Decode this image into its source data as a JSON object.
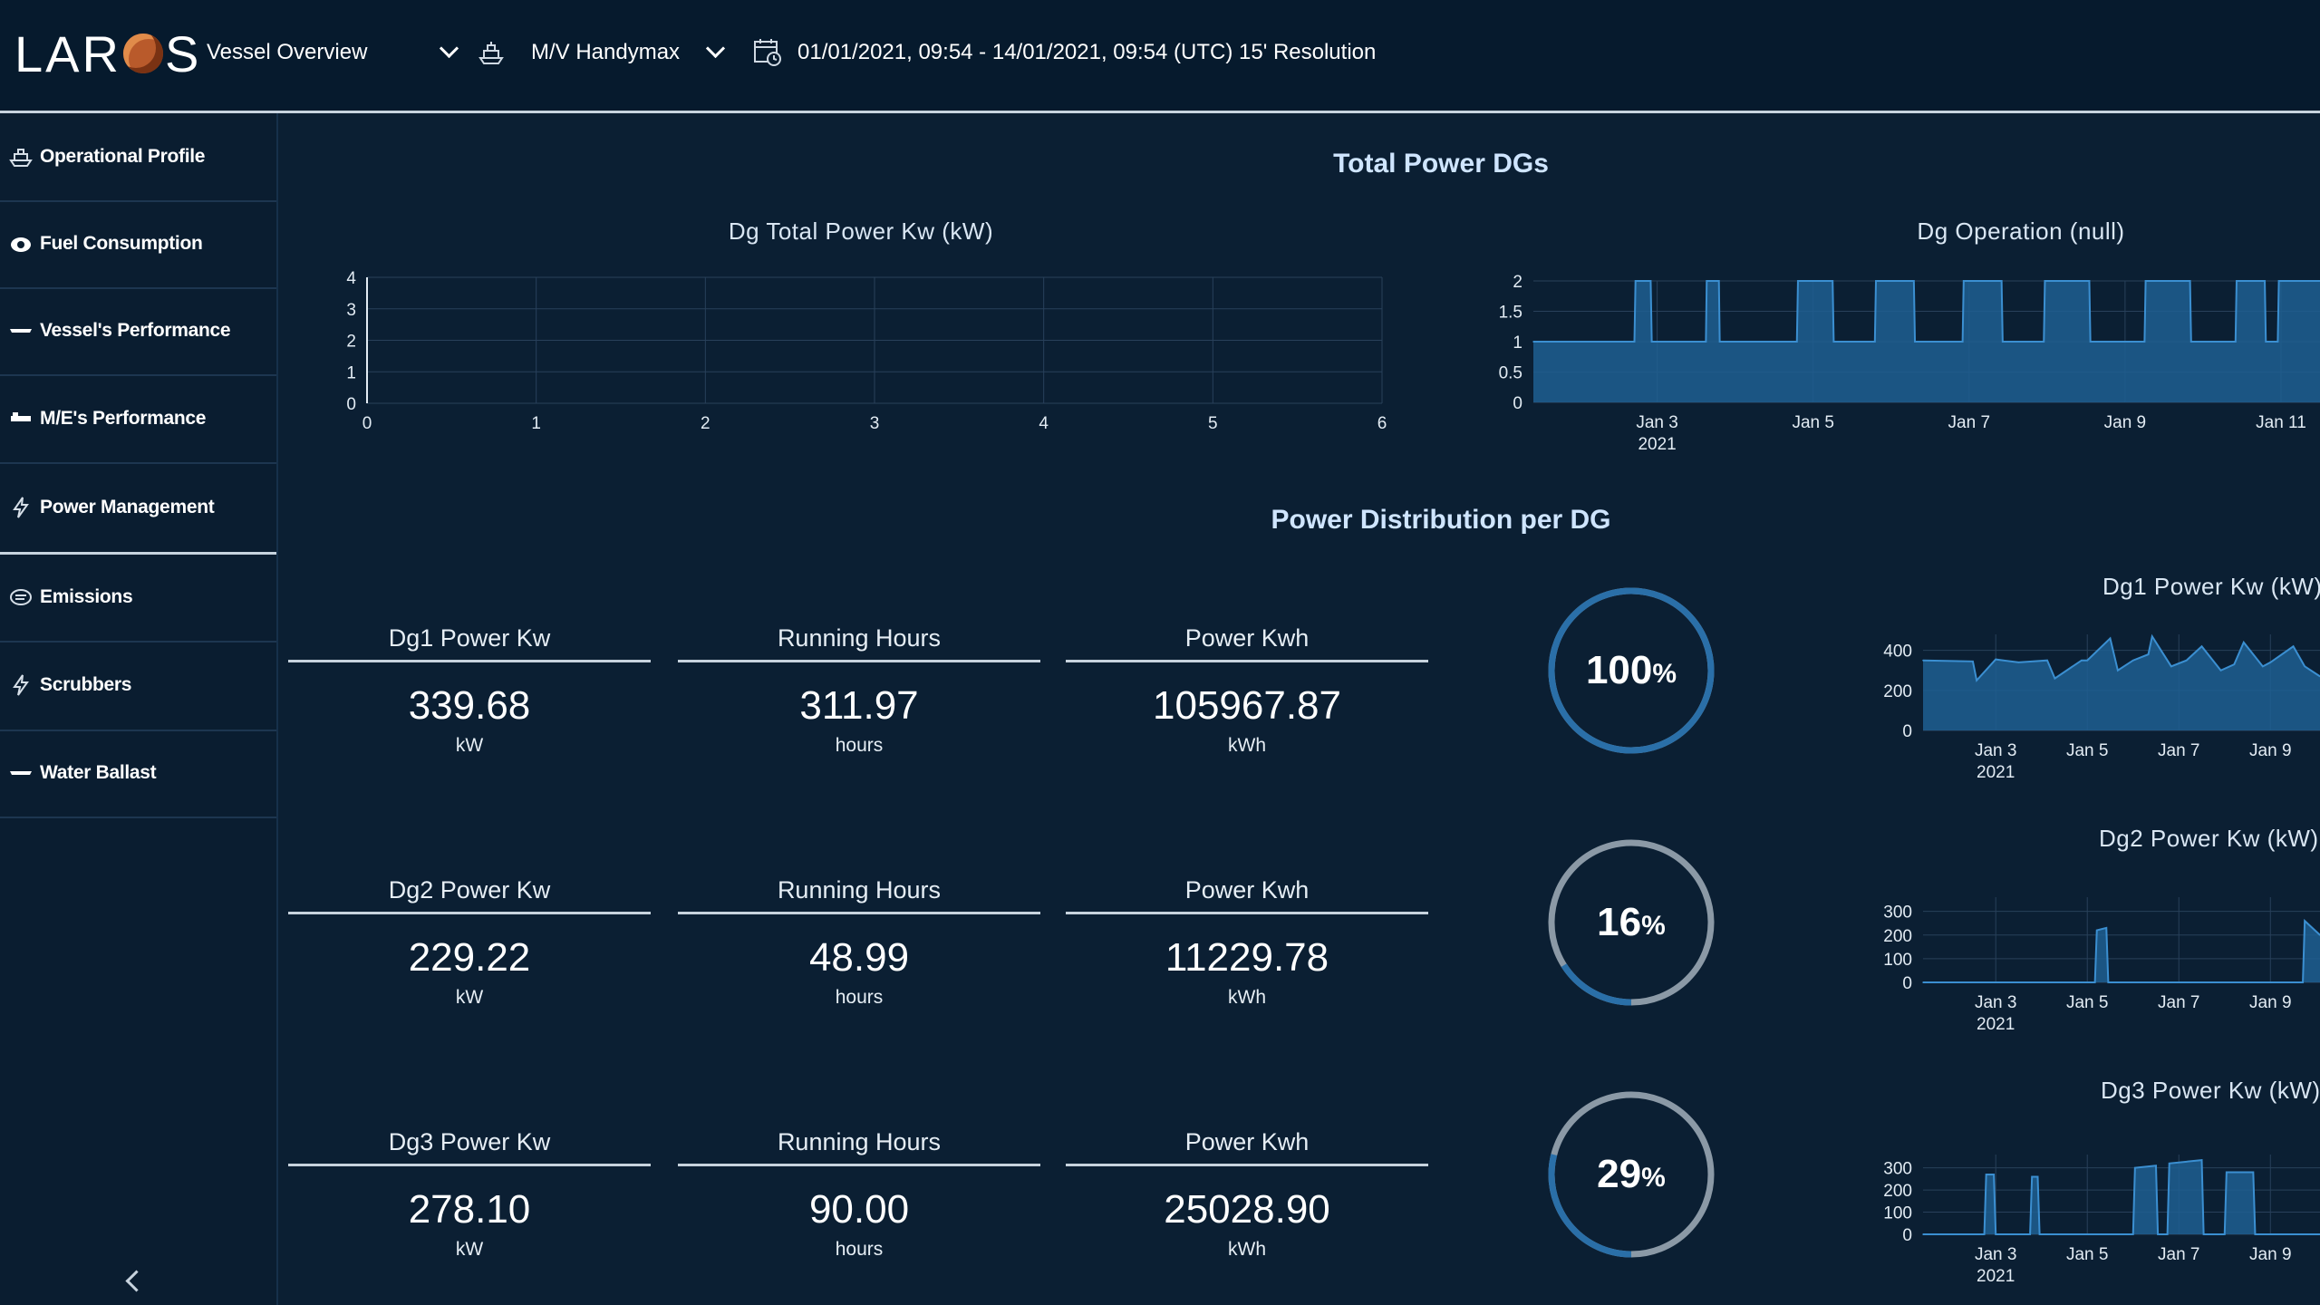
{
  "header": {
    "logo": "LAR",
    "logo_tail": "S",
    "view_select": "Vessel Overview",
    "vessel_select": "M/V Handymax",
    "date_range": "01/01/2021, 09:54 - 14/01/2021, 09:54 (UTC) 15' Resolution"
  },
  "sidebar": {
    "items": [
      {
        "label": "Operational Profile",
        "icon": "ship-icon"
      },
      {
        "label": "Fuel Consumption",
        "icon": "fuel-drop-icon"
      },
      {
        "label": "Vessel's Performance",
        "icon": "vessel-icon"
      },
      {
        "label": "M/E's Performance",
        "icon": "engine-icon"
      },
      {
        "label": "Power Management",
        "icon": "lightning-icon"
      },
      {
        "label": "Emissions",
        "icon": "emissions-icon"
      },
      {
        "label": "Scrubbers",
        "icon": "lightning-icon"
      },
      {
        "label": "Water Ballast",
        "icon": "ballast-icon"
      }
    ]
  },
  "sections": {
    "total_power": "Total Power DGs",
    "distribution": "Power Distribution per DG"
  },
  "colors": {
    "background": "#0b1f33",
    "accent_blue": "#2a6fa8",
    "area_fill": "#1f5f92",
    "ring_gray": "#8b99a6",
    "line": "#3b8fd1"
  },
  "dg_rows": [
    {
      "power_label": "Dg1 Power Kw",
      "power_value": "339.68",
      "power_unit": "kW",
      "hours_label": "Running Hours",
      "hours_value": "311.97",
      "hours_unit": "hours",
      "kwh_label": "Power Kwh",
      "kwh_value": "105967.87",
      "kwh_unit": "kWh",
      "percent": "100",
      "percent_sign": "%"
    },
    {
      "power_label": "Dg2 Power Kw",
      "power_value": "229.22",
      "power_unit": "kW",
      "hours_label": "Running Hours",
      "hours_value": "48.99",
      "hours_unit": "hours",
      "kwh_label": "Power Kwh",
      "kwh_value": "11229.78",
      "kwh_unit": "kWh",
      "percent": "16",
      "percent_sign": "%"
    },
    {
      "power_label": "Dg3 Power Kw",
      "power_value": "278.10",
      "power_unit": "kW",
      "hours_label": "Running Hours",
      "hours_value": "90.00",
      "hours_unit": "hours",
      "kwh_label": "Power Kwh",
      "kwh_value": "25028.90",
      "kwh_unit": "kWh",
      "percent": "29",
      "percent_sign": "%"
    }
  ],
  "chart_data": [
    {
      "type": "line",
      "title": "Dg Total Power Kw (kW)",
      "xlim": [
        0,
        6
      ],
      "ylim": [
        0,
        4
      ],
      "x_ticks": [
        "0",
        "1",
        "2",
        "3",
        "4",
        "5",
        "6"
      ],
      "y_ticks": [
        "0",
        "1",
        "2",
        "3",
        "4"
      ],
      "series": []
    },
    {
      "type": "area",
      "title": "Dg Operation (null)",
      "x_ticks": [
        "Jan 3",
        "Jan 5",
        "Jan 7",
        "Jan 9",
        "Jan 11"
      ],
      "x_year": "2021",
      "y_ticks": [
        "0",
        "0.5",
        "1",
        "1.5",
        "2"
      ],
      "xlim": [
        "2021-01-01 09:54",
        "2021-01-11 12:00"
      ],
      "ylim": [
        0,
        2
      ],
      "series": [
        {
          "x": [
            "2021-01-01 09:54",
            "2021-01-02 17:00",
            "2021-01-02 17:20",
            "2021-01-02 22:00",
            "2021-01-02 22:20",
            "2021-01-03 15:00",
            "2021-01-03 15:15",
            "2021-01-03 19:00",
            "2021-01-03 19:15",
            "2021-01-04 19:00",
            "2021-01-04 19:20",
            "2021-01-05 06:00",
            "2021-01-05 06:20",
            "2021-01-05 19:00",
            "2021-01-05 19:20",
            "2021-01-06 07:00",
            "2021-01-06 07:20",
            "2021-01-06 22:00",
            "2021-01-06 22:20",
            "2021-01-07 10:00",
            "2021-01-07 10:20",
            "2021-01-07 23:00",
            "2021-01-07 23:20",
            "2021-01-08 13:00",
            "2021-01-08 13:20",
            "2021-01-09 06:00",
            "2021-01-09 06:20",
            "2021-01-09 20:00",
            "2021-01-09 20:20",
            "2021-01-10 10:00",
            "2021-01-10 10:20",
            "2021-01-10 19:00",
            "2021-01-10 19:20",
            "2021-01-10 23:00",
            "2021-01-10 23:20",
            "2021-01-11 12:00"
          ],
          "y": [
            1,
            1,
            2,
            2,
            1,
            1,
            2,
            2,
            1,
            1,
            2,
            2,
            1,
            1,
            2,
            2,
            1,
            1,
            2,
            2,
            1,
            1,
            2,
            2,
            1,
            1,
            2,
            2,
            1,
            1,
            2,
            2,
            1,
            1,
            2,
            2
          ]
        }
      ]
    },
    {
      "type": "area",
      "title": "Dg1 Power Kw (kW)",
      "x_ticks": [
        "Jan 3",
        "Jan 5",
        "Jan 7",
        "Jan 9"
      ],
      "x_year": "2021",
      "y_ticks": [
        "0",
        "200",
        "400"
      ],
      "xlim": [
        "2021-01-01 09:54",
        "2021-01-10 02:00"
      ],
      "ylim": [
        0,
        480
      ],
      "series": [
        {
          "x": [
            "2021-01-01 09:54",
            "2021-01-02 12:00",
            "2021-01-02 14:00",
            "2021-01-03 00:00",
            "2021-01-03 04:00",
            "2021-01-03 12:00",
            "2021-01-04 03:00",
            "2021-01-04 07:00",
            "2021-01-04 21:00",
            "2021-01-05 00:00",
            "2021-01-05 12:00",
            "2021-01-05 16:00",
            "2021-01-06 00:00",
            "2021-01-06 08:00",
            "2021-01-06 10:00",
            "2021-01-06 20:00",
            "2021-01-07 04:00",
            "2021-01-07 12:00",
            "2021-01-07 22:00",
            "2021-01-08 05:00",
            "2021-01-08 10:00",
            "2021-01-08 20:00",
            "2021-01-09 00:00",
            "2021-01-09 12:00",
            "2021-01-09 18:00",
            "2021-01-10 02:00"
          ],
          "y": [
            350,
            345,
            250,
            355,
            350,
            340,
            350,
            260,
            350,
            350,
            460,
            300,
            350,
            380,
            470,
            320,
            350,
            420,
            300,
            330,
            440,
            320,
            340,
            420,
            320,
            270
          ]
        }
      ]
    },
    {
      "type": "area",
      "title": "Dg2 Power Kw (kW)",
      "x_ticks": [
        "Jan 3",
        "Jan 5",
        "Jan 7",
        "Jan 9"
      ],
      "x_year": "2021",
      "y_ticks": [
        "0",
        "100",
        "200",
        "300"
      ],
      "xlim": [
        "2021-01-01 09:54",
        "2021-01-10 02:00"
      ],
      "ylim": [
        0,
        360
      ],
      "series": [
        {
          "x": [
            "2021-01-01 09:54",
            "2021-01-05 04:00",
            "2021-01-05 05:00",
            "2021-01-05 10:00",
            "2021-01-05 11:00",
            "2021-01-09 17:00",
            "2021-01-09 18:00",
            "2021-01-10 02:00"
          ],
          "y": [
            0,
            0,
            220,
            230,
            0,
            0,
            260,
            200
          ]
        }
      ]
    },
    {
      "type": "area",
      "title": "Dg3 Power Kw (kW)",
      "x_ticks": [
        "Jan 3",
        "Jan 5",
        "Jan 7",
        "Jan 9"
      ],
      "x_year": "2021",
      "y_ticks": [
        "0",
        "100",
        "200",
        "300"
      ],
      "xlim": [
        "2021-01-01 09:54",
        "2021-01-10 02:00"
      ],
      "ylim": [
        0,
        360
      ],
      "series": [
        {
          "x": [
            "2021-01-01 09:54",
            "2021-01-02 18:00",
            "2021-01-02 19:00",
            "2021-01-02 23:00",
            "2021-01-03 00:00",
            "2021-01-03 18:00",
            "2021-01-03 19:00",
            "2021-01-03 22:00",
            "2021-01-03 23:00",
            "2021-01-06 00:00",
            "2021-01-06 01:00",
            "2021-01-06 12:00",
            "2021-01-06 13:00",
            "2021-01-06 18:00",
            "2021-01-06 19:00",
            "2021-01-07 12:00",
            "2021-01-07 13:00",
            "2021-01-08 00:00",
            "2021-01-08 01:00",
            "2021-01-08 15:00",
            "2021-01-08 16:00",
            "2021-01-10 02:00"
          ],
          "y": [
            0,
            0,
            270,
            270,
            0,
            0,
            260,
            260,
            0,
            0,
            300,
            310,
            0,
            0,
            320,
            335,
            0,
            0,
            280,
            280,
            0,
            0
          ]
        }
      ]
    }
  ]
}
